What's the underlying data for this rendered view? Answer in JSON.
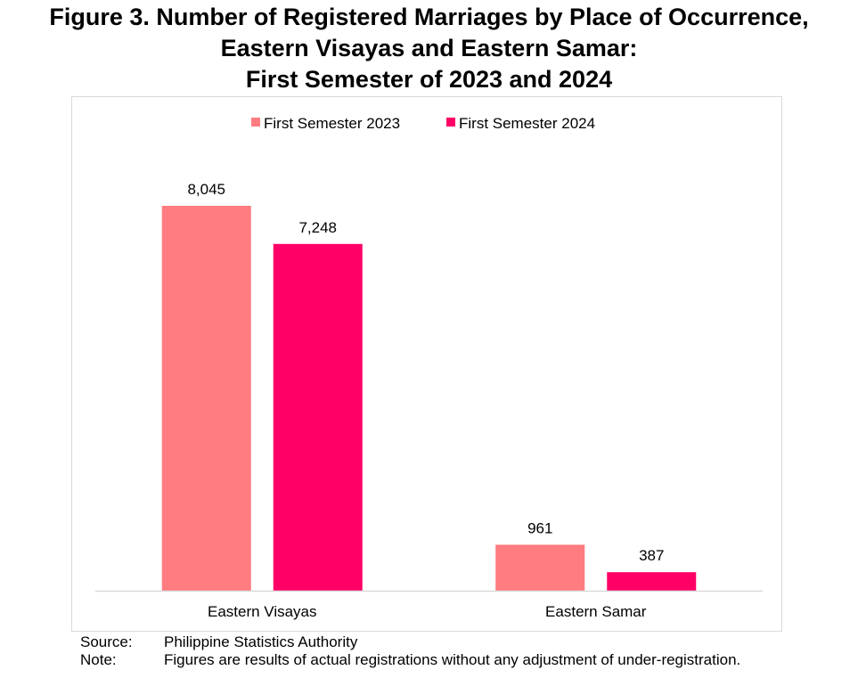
{
  "title_lines": [
    "Figure 3. Number of Registered Marriages by Place of Occurrence,",
    "Eastern Visayas and Eastern Samar:",
    "First Semester of 2023 and 2024"
  ],
  "chart_data": {
    "type": "bar",
    "categories": [
      "Eastern Visayas",
      "Eastern Samar"
    ],
    "series": [
      {
        "name": "First Semester 2023",
        "values": [
          8045,
          961
        ],
        "labels": [
          "8,045",
          "961"
        ],
        "color": "#ff7c80"
      },
      {
        "name": "First Semester 2024",
        "values": [
          7248,
          387
        ],
        "labels": [
          "7,248",
          "387"
        ],
        "color": "#ff0066"
      }
    ],
    "title": "Figure 3. Number of Registered Marriages by Place of Occurrence, Eastern Visayas and Eastern Samar: First Semester of 2023 and 2024",
    "xlabel": "",
    "ylabel": "",
    "ylim": [
      0,
      8045
    ],
    "grid": false,
    "legend": "top-center"
  },
  "footnotes": {
    "source_label": "Source:",
    "source_text": "Philippine Statistics Authority",
    "note_label": "Note:",
    "note_text": "Figures are results of actual registrations without any adjustment of under-registration."
  }
}
